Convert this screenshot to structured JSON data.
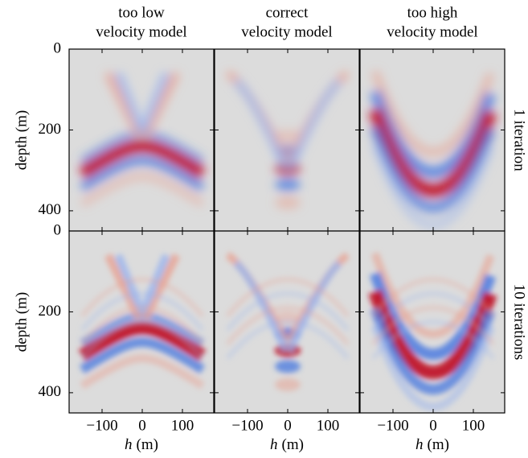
{
  "chart_data": {
    "type": "heatmap-grid",
    "column_titles": [
      [
        "too low",
        "velocity model"
      ],
      [
        "correct",
        "velocity model"
      ],
      [
        "too high",
        "velocity model"
      ]
    ],
    "row_labels": [
      "1 iteration",
      "10 iterations"
    ],
    "xlabel_var": "h",
    "xlabel_unit": "(m)",
    "ylabel": "depth (m)",
    "xlim": [
      -182,
      178
    ],
    "xticks": [
      {
        "value": -100,
        "label": "−100"
      },
      0,
      100
    ],
    "ylim": [
      0,
      450
    ],
    "yticks": [
      0,
      200,
      400
    ]
  }
}
